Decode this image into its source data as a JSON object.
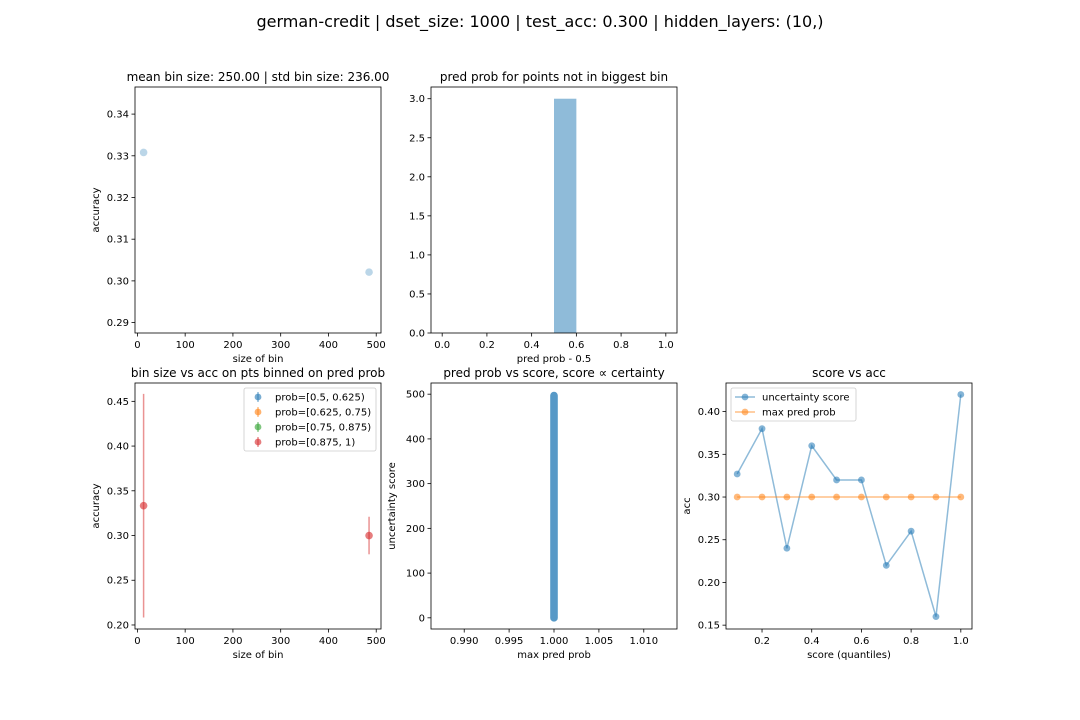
{
  "figure": {
    "suptitle": "german-credit | dset_size: 1000 | test_acc: 0.300 | hidden_layers: (10,)"
  },
  "colors": {
    "blue": "#1f77b4",
    "orange": "#ff7f0e",
    "green": "#2ca02c",
    "red": "#d62728",
    "hist": "#8fbbd9"
  },
  "chart_data": [
    {
      "id": "p1",
      "type": "scatter",
      "title": "mean bin size: 250.00 | std bin size: 236.00",
      "xlabel": "size of bin",
      "ylabel": "accuracy",
      "xlim": [
        -5,
        510
      ],
      "ylim": [
        0.2875,
        0.3465
      ],
      "xticks": [
        0,
        100,
        200,
        300,
        400,
        500
      ],
      "yticks": [
        0.29,
        0.3,
        0.31,
        0.32,
        0.33,
        0.34
      ],
      "ytick_decimals": 2,
      "series": [
        {
          "color": "blue",
          "alpha": 0.3,
          "points": [
            [
              13,
              0.3308
            ],
            [
              485,
              0.3021
            ]
          ]
        }
      ]
    },
    {
      "id": "p2",
      "type": "bar",
      "title": "pred prob for points not in biggest bin",
      "xlabel": "pred prob - 0.5",
      "ylabel": "",
      "xlim": [
        -0.05,
        1.05
      ],
      "ylim": [
        0,
        3.15
      ],
      "xticks": [
        0.0,
        0.2,
        0.4,
        0.6,
        0.8,
        1.0
      ],
      "xtick_decimals": 1,
      "yticks": [
        0.0,
        0.5,
        1.0,
        1.5,
        2.0,
        2.5,
        3.0
      ],
      "ytick_decimals": 1,
      "bars": [
        {
          "x0": 0.5,
          "x1": 0.6,
          "value": 3
        }
      ]
    },
    {
      "id": "p3",
      "type": "scatter",
      "title": "bin size vs acc on pts binned on pred prob",
      "xlabel": "size of bin",
      "ylabel": "accuracy",
      "xlim": [
        -5,
        510
      ],
      "ylim": [
        0.1955,
        0.4705
      ],
      "xticks": [
        0,
        100,
        200,
        300,
        400,
        500
      ],
      "yticks": [
        0.2,
        0.25,
        0.3,
        0.35,
        0.4,
        0.45
      ],
      "ytick_decimals": 2,
      "legend": {
        "position": "upper right",
        "entries": [
          {
            "label": "prob=[0.5, 0.625)",
            "color": "blue"
          },
          {
            "label": "prob=[0.625, 0.75)",
            "color": "orange"
          },
          {
            "label": "prob=[0.75, 0.875)",
            "color": "green"
          },
          {
            "label": "prob=[0.875, 1)",
            "color": "red"
          }
        ]
      },
      "errorbars": [
        {
          "series": "prob=[0.875, 1)",
          "color": "red",
          "x": 13,
          "y": 0.3333,
          "ylow": 0.2083,
          "yhigh": 0.4583
        },
        {
          "series": "prob=[0.875, 1)",
          "color": "red",
          "x": 485,
          "y": 0.3,
          "ylow": 0.279,
          "yhigh": 0.321
        }
      ]
    },
    {
      "id": "p4",
      "type": "scatter",
      "title": "pred prob vs score, score ∝ certainty",
      "xlabel": "max pred prob",
      "ylabel": "uncertainty score",
      "xlim": [
        0.9863,
        1.0137
      ],
      "ylim": [
        -25,
        525
      ],
      "xticks": [
        0.99,
        0.995,
        1.0,
        1.005,
        1.01
      ],
      "xtick_decimals": 3,
      "yticks": [
        0,
        100,
        200,
        300,
        400,
        500
      ],
      "ytick_decimals": 0,
      "column": {
        "x": 1.0,
        "ymin": 0,
        "ymax": 497,
        "color": "blue"
      }
    },
    {
      "id": "p5",
      "type": "line",
      "title": "score vs acc",
      "xlabel": "score (quantiles)",
      "ylabel": "acc",
      "xlim": [
        0.055,
        1.045
      ],
      "ylim": [
        0.1455,
        0.4335
      ],
      "xticks": [
        0.2,
        0.4,
        0.6,
        0.8,
        1.0
      ],
      "xtick_decimals": 1,
      "yticks": [
        0.15,
        0.2,
        0.25,
        0.3,
        0.35,
        0.4
      ],
      "ytick_decimals": 2,
      "legend": {
        "position": "upper left"
      },
      "x": [
        0.1,
        0.2,
        0.3,
        0.4,
        0.5,
        0.6,
        0.7,
        0.8,
        0.9,
        1.0
      ],
      "series": [
        {
          "name": "uncertainty score",
          "color": "blue",
          "values": [
            0.327,
            0.38,
            0.24,
            0.36,
            0.32,
            0.32,
            0.22,
            0.26,
            0.16,
            0.42
          ]
        },
        {
          "name": "max pred prob",
          "color": "orange",
          "values": [
            0.3,
            0.3,
            0.3,
            0.3,
            0.3,
            0.3,
            0.3,
            0.3,
            0.3,
            0.3
          ]
        }
      ]
    }
  ]
}
